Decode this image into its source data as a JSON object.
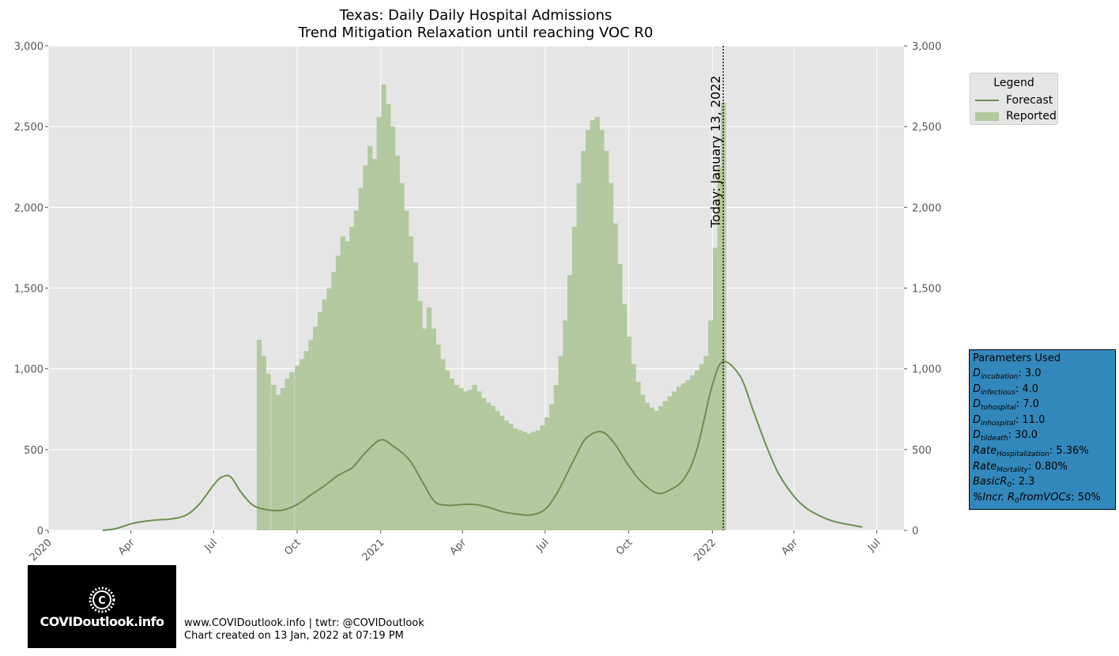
{
  "chart_data": {
    "type": "bar+line",
    "title": "Texas: Daily Daily Hospital Admissions",
    "subtitle": "Trend Mitigation Relaxation until reaching VOC R0",
    "ylim": [
      0,
      3000
    ],
    "y_ticks": [
      0,
      500,
      1000,
      1500,
      2000,
      2500,
      3000
    ],
    "y_tick_labels": [
      "0",
      "500",
      "1,000",
      "1,500",
      "2,000",
      "2,500",
      "3,000"
    ],
    "xlim": [
      "2020-01-01",
      "2022-07-31"
    ],
    "x_ticks": [
      "2020-01-01",
      "2020-04-01",
      "2020-07-01",
      "2020-10-01",
      "2021-01-01",
      "2021-04-01",
      "2021-07-01",
      "2021-10-01",
      "2022-01-01",
      "2022-04-01",
      "2022-07-01"
    ],
    "x_tick_labels": [
      "2020",
      "Apr",
      "Jul",
      "Oct",
      "2021",
      "Apr",
      "Jul",
      "Oct",
      "2022",
      "Apr",
      "Jul"
    ],
    "grid": true,
    "legend_position": "outside-top-right",
    "today": {
      "date": "2022-01-13",
      "label": "Today: January 13, 2022"
    },
    "series": [
      {
        "name": "Reported",
        "type": "bar",
        "color": "#b2c9a0",
        "points": [
          [
            "2020-08-20",
            1180
          ],
          [
            "2020-08-25",
            1080
          ],
          [
            "2020-08-30",
            970
          ],
          [
            "2020-09-05",
            900
          ],
          [
            "2020-09-10",
            840
          ],
          [
            "2020-09-15",
            880
          ],
          [
            "2020-09-20",
            940
          ],
          [
            "2020-09-25",
            980
          ],
          [
            "2020-10-01",
            1020
          ],
          [
            "2020-10-06",
            1060
          ],
          [
            "2020-10-11",
            1110
          ],
          [
            "2020-10-16",
            1180
          ],
          [
            "2020-10-21",
            1260
          ],
          [
            "2020-10-26",
            1350
          ],
          [
            "2020-10-31",
            1430
          ],
          [
            "2020-11-05",
            1500
          ],
          [
            "2020-11-10",
            1600
          ],
          [
            "2020-11-15",
            1700
          ],
          [
            "2020-11-20",
            1820
          ],
          [
            "2020-11-25",
            1790
          ],
          [
            "2020-11-30",
            1880
          ],
          [
            "2020-12-05",
            1980
          ],
          [
            "2020-12-10",
            2120
          ],
          [
            "2020-12-15",
            2260
          ],
          [
            "2020-12-20",
            2380
          ],
          [
            "2020-12-25",
            2300
          ],
          [
            "2020-12-30",
            2560
          ],
          [
            "2021-01-04",
            2760
          ],
          [
            "2021-01-09",
            2640
          ],
          [
            "2021-01-14",
            2500
          ],
          [
            "2021-01-19",
            2320
          ],
          [
            "2021-01-24",
            2150
          ],
          [
            "2021-01-29",
            1980
          ],
          [
            "2021-02-03",
            1820
          ],
          [
            "2021-02-08",
            1660
          ],
          [
            "2021-02-13",
            1420
          ],
          [
            "2021-02-18",
            1250
          ],
          [
            "2021-02-23",
            1380
          ],
          [
            "2021-02-28",
            1250
          ],
          [
            "2021-03-05",
            1150
          ],
          [
            "2021-03-10",
            1060
          ],
          [
            "2021-03-15",
            990
          ],
          [
            "2021-03-20",
            940
          ],
          [
            "2021-03-25",
            900
          ],
          [
            "2021-03-30",
            880
          ],
          [
            "2021-04-04",
            860
          ],
          [
            "2021-04-09",
            870
          ],
          [
            "2021-04-14",
            900
          ],
          [
            "2021-04-19",
            860
          ],
          [
            "2021-04-24",
            820
          ],
          [
            "2021-04-29",
            790
          ],
          [
            "2021-05-04",
            770
          ],
          [
            "2021-05-09",
            740
          ],
          [
            "2021-05-14",
            710
          ],
          [
            "2021-05-19",
            680
          ],
          [
            "2021-05-24",
            660
          ],
          [
            "2021-05-29",
            630
          ],
          [
            "2021-06-03",
            620
          ],
          [
            "2021-06-08",
            610
          ],
          [
            "2021-06-13",
            600
          ],
          [
            "2021-06-18",
            610
          ],
          [
            "2021-06-23",
            620
          ],
          [
            "2021-06-28",
            650
          ],
          [
            "2021-07-03",
            700
          ],
          [
            "2021-07-08",
            780
          ],
          [
            "2021-07-13",
            900
          ],
          [
            "2021-07-18",
            1080
          ],
          [
            "2021-07-23",
            1300
          ],
          [
            "2021-07-28",
            1580
          ],
          [
            "2021-08-02",
            1880
          ],
          [
            "2021-08-07",
            2150
          ],
          [
            "2021-08-12",
            2350
          ],
          [
            "2021-08-17",
            2480
          ],
          [
            "2021-08-22",
            2540
          ],
          [
            "2021-08-27",
            2560
          ],
          [
            "2021-09-01",
            2480
          ],
          [
            "2021-09-06",
            2350
          ],
          [
            "2021-09-11",
            2150
          ],
          [
            "2021-09-16",
            1900
          ],
          [
            "2021-09-21",
            1650
          ],
          [
            "2021-09-26",
            1400
          ],
          [
            "2021-10-01",
            1200
          ],
          [
            "2021-10-06",
            1030
          ],
          [
            "2021-10-11",
            920
          ],
          [
            "2021-10-16",
            840
          ],
          [
            "2021-10-21",
            790
          ],
          [
            "2021-10-26",
            760
          ],
          [
            "2021-10-31",
            740
          ],
          [
            "2021-11-05",
            770
          ],
          [
            "2021-11-10",
            800
          ],
          [
            "2021-11-15",
            830
          ],
          [
            "2021-11-20",
            860
          ],
          [
            "2021-11-25",
            890
          ],
          [
            "2021-11-30",
            910
          ],
          [
            "2021-12-05",
            930
          ],
          [
            "2021-12-10",
            960
          ],
          [
            "2021-12-15",
            990
          ],
          [
            "2021-12-20",
            1030
          ],
          [
            "2021-12-25",
            1080
          ],
          [
            "2021-12-30",
            1300
          ],
          [
            "2022-01-04",
            1750
          ],
          [
            "2022-01-09",
            2250
          ],
          [
            "2022-01-13",
            2650
          ]
        ]
      },
      {
        "name": "Forecast",
        "type": "line",
        "color": "#6b8e4e",
        "points": [
          [
            "2020-03-01",
            0
          ],
          [
            "2020-03-15",
            10
          ],
          [
            "2020-04-01",
            40
          ],
          [
            "2020-04-15",
            55
          ],
          [
            "2020-05-01",
            65
          ],
          [
            "2020-05-15",
            70
          ],
          [
            "2020-06-01",
            95
          ],
          [
            "2020-06-15",
            160
          ],
          [
            "2020-07-01",
            280
          ],
          [
            "2020-07-10",
            330
          ],
          [
            "2020-07-20",
            330
          ],
          [
            "2020-08-01",
            230
          ],
          [
            "2020-08-15",
            150
          ],
          [
            "2020-09-01",
            125
          ],
          [
            "2020-09-15",
            125
          ],
          [
            "2020-10-01",
            160
          ],
          [
            "2020-10-15",
            215
          ],
          [
            "2020-11-01",
            280
          ],
          [
            "2020-11-15",
            340
          ],
          [
            "2020-12-01",
            390
          ],
          [
            "2020-12-15",
            480
          ],
          [
            "2021-01-01",
            560
          ],
          [
            "2021-01-15",
            520
          ],
          [
            "2021-02-01",
            440
          ],
          [
            "2021-02-15",
            310
          ],
          [
            "2021-03-01",
            180
          ],
          [
            "2021-03-15",
            155
          ],
          [
            "2021-04-01",
            160
          ],
          [
            "2021-04-15",
            160
          ],
          [
            "2021-05-01",
            140
          ],
          [
            "2021-05-15",
            115
          ],
          [
            "2021-06-01",
            100
          ],
          [
            "2021-06-15",
            95
          ],
          [
            "2021-07-01",
            130
          ],
          [
            "2021-07-15",
            240
          ],
          [
            "2021-08-01",
            430
          ],
          [
            "2021-08-15",
            570
          ],
          [
            "2021-09-01",
            610
          ],
          [
            "2021-09-15",
            540
          ],
          [
            "2021-10-01",
            400
          ],
          [
            "2021-10-15",
            300
          ],
          [
            "2021-11-01",
            230
          ],
          [
            "2021-11-15",
            250
          ],
          [
            "2021-12-01",
            320
          ],
          [
            "2021-12-15",
            500
          ],
          [
            "2022-01-01",
            900
          ],
          [
            "2022-01-13",
            1045
          ],
          [
            "2022-02-01",
            950
          ],
          [
            "2022-02-15",
            740
          ],
          [
            "2022-03-01",
            530
          ],
          [
            "2022-03-15",
            350
          ],
          [
            "2022-04-01",
            210
          ],
          [
            "2022-04-15",
            135
          ],
          [
            "2022-05-01",
            85
          ],
          [
            "2022-05-15",
            55
          ],
          [
            "2022-06-01",
            35
          ],
          [
            "2022-06-15",
            20
          ]
        ]
      }
    ]
  },
  "legend": {
    "title": "Legend",
    "items": [
      {
        "label": "Forecast",
        "kind": "line",
        "color": "#6b8e4e"
      },
      {
        "label": "Reported",
        "kind": "patch",
        "color": "#b2c9a0"
      }
    ]
  },
  "parameters": {
    "title": "Parameters Used",
    "background": "#3288bd",
    "items": [
      {
        "sym": "D",
        "sub": "incubation",
        "value": ": 3.0"
      },
      {
        "sym": "D",
        "sub": "infectious",
        "value": ": 4.0"
      },
      {
        "sym": "D",
        "sub": "tohospital",
        "value": ": 7.0"
      },
      {
        "sym": "D",
        "sub": "inhospital",
        "value": ": 11.0"
      },
      {
        "sym": "D",
        "sub": "tildeath",
        "value": ": 30.0"
      },
      {
        "sym": "Rate",
        "sub": "Hospitalization",
        "value": ": 5.36%"
      },
      {
        "sym": "Rate",
        "sub": "Mortality",
        "value": ": 0.80%"
      },
      {
        "sym": "BasicR",
        "sub": "0",
        "value": ": 2.3"
      },
      {
        "sym": "%Incr. R",
        "sub": "0",
        "suffix": "fromVOCs",
        "value": ": 50%"
      }
    ]
  },
  "logo": {
    "text": "COVIDoutlook.info",
    "icon": "virus-c-icon"
  },
  "footer": {
    "line1": "www.COVIDoutlook.info | twtr: @COVIDoutlook",
    "line2": "Chart created on 13 Jan, 2022 at 07:19 PM"
  }
}
